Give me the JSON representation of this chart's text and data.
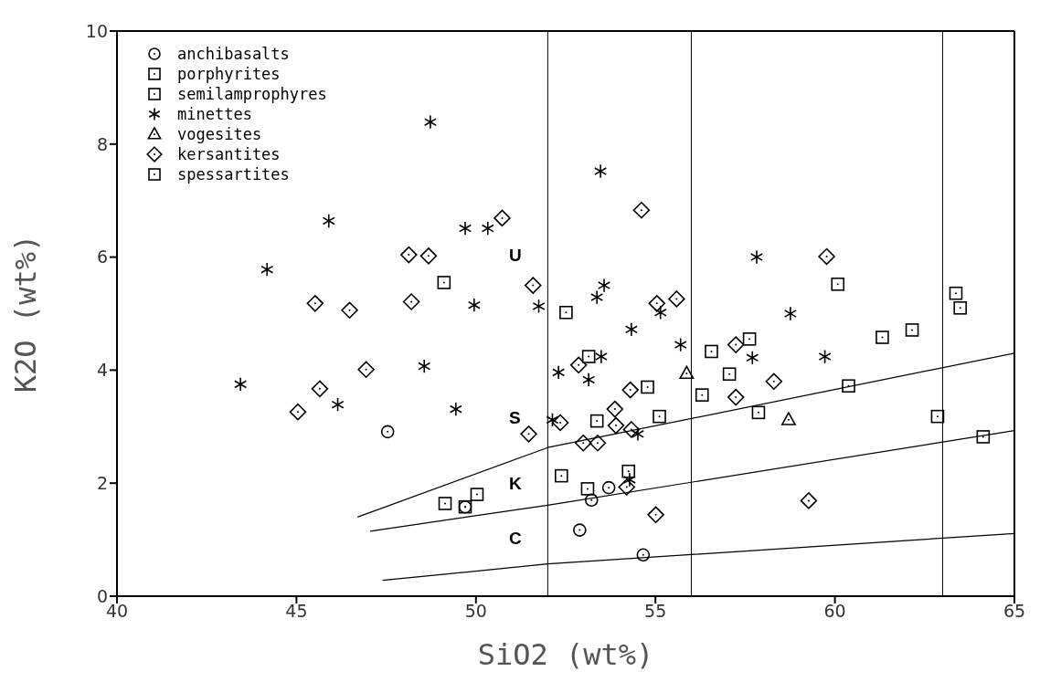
{
  "chart_data": {
    "type": "scatter",
    "xlabel": "SiO2 (wt%)",
    "ylabel": "K2O (wt%)",
    "xlim": [
      40,
      65
    ],
    "xticks": [
      40,
      45,
      50,
      55,
      60,
      65
    ],
    "ylim": [
      0,
      10
    ],
    "yticks": [
      0,
      2,
      4,
      6,
      8,
      10
    ],
    "legend": "top left",
    "series": [
      {
        "name": "anchibasalts",
        "color": "#000000",
        "marker": "circle",
        "x": [
          47.54,
          49.7,
          52.89,
          53.22,
          53.7,
          54.66
        ],
        "values": [
          2.91,
          1.58,
          1.17,
          1.7,
          1.92,
          0.73
        ]
      },
      {
        "name": "porphyrites",
        "color": "#000000",
        "marker": "square",
        "x": [
          52.51,
          54.25,
          54.78,
          56.3,
          57.62
        ],
        "values": [
          5.02,
          2.21,
          3.7,
          3.56,
          4.55
        ]
      },
      {
        "name": "semilamprophyres",
        "color": "#000000",
        "marker": "square",
        "x": [
          57.06,
          57.87,
          60.08,
          60.38,
          61.32,
          62.15,
          63.37,
          63.49,
          62.86,
          64.13
        ],
        "values": [
          3.93,
          3.25,
          5.52,
          3.72,
          4.58,
          4.71,
          5.36,
          5.1,
          3.18,
          2.82
        ]
      },
      {
        "name": "minettes",
        "color": "#000000",
        "marker": "cross",
        "x": [
          43.44,
          44.18,
          45.9,
          46.15,
          48.56,
          48.73,
          49.44,
          49.7,
          49.95,
          50.33,
          51.75,
          52.13,
          52.3,
          53.14,
          53.37,
          53.47,
          53.49,
          53.57,
          54.28,
          54.33,
          54.51,
          55.14,
          55.7,
          57.7,
          57.82,
          58.76,
          59.72
        ],
        "values": [
          3.75,
          5.78,
          6.64,
          3.39,
          4.07,
          8.39,
          3.31,
          6.51,
          5.15,
          6.51,
          5.13,
          3.12,
          3.96,
          3.83,
          5.29,
          7.52,
          4.24,
          5.5,
          2.06,
          4.72,
          2.87,
          5.02,
          4.45,
          4.22,
          6.0,
          5.0,
          4.24
        ]
      },
      {
        "name": "vogesites",
        "color": "#000000",
        "marker": "triangle",
        "x": [
          55.87,
          58.71
        ],
        "values": [
          3.94,
          3.12
        ]
      },
      {
        "name": "kersantites",
        "color": "#000000",
        "marker": "diamond",
        "x": [
          48.13,
          48.68,
          45.52,
          46.48,
          48.2,
          46.94,
          45.65,
          45.04,
          51.59,
          51.47,
          52.35,
          50.73,
          54.61,
          55.04,
          55.59,
          52.86,
          54.3,
          53.87,
          53.9,
          54.33,
          57.24,
          57.24,
          52.99,
          53.39,
          54.2,
          55.01,
          59.77,
          58.3,
          59.27
        ],
        "values": [
          6.04,
          6.02,
          5.18,
          5.06,
          5.21,
          4.01,
          3.67,
          3.26,
          5.5,
          2.87,
          3.07,
          6.69,
          6.83,
          5.18,
          5.26,
          4.09,
          3.65,
          3.31,
          3.02,
          2.95,
          4.45,
          3.52,
          2.71,
          2.71,
          1.93,
          1.44,
          6.01,
          3.8,
          1.69
        ]
      },
      {
        "name": "spessartites",
        "color": "#000000",
        "marker": "square",
        "x": [
          49.11,
          49.14,
          49.7,
          50.03,
          52.38,
          53.11,
          53.37,
          53.14,
          56.56,
          55.11
        ],
        "values": [
          5.55,
          1.64,
          1.58,
          1.8,
          2.13,
          1.9,
          3.1,
          4.24,
          4.33,
          3.18
        ]
      },
      {
        "type": "line",
        "color": "#000000",
        "marker": "none",
        "x": [
          46.7,
          52,
          65
        ],
        "values": [
          1.4,
          2.63,
          4.3
        ]
      },
      {
        "type": "line",
        "color": "#000000",
        "marker": "none",
        "x": [
          47.05,
          52,
          65
        ],
        "values": [
          1.15,
          1.61,
          2.93
        ]
      },
      {
        "type": "line",
        "color": "#000000",
        "marker": "none",
        "x": [
          47.4,
          52,
          65
        ],
        "values": [
          0.28,
          0.57,
          1.11
        ]
      }
    ],
    "ref_lines": [
      {
        "axis": "x",
        "value": 52
      },
      {
        "axis": "x",
        "value": 56
      },
      {
        "axis": "x",
        "value": 63
      }
    ],
    "annotations": [
      "U",
      "S",
      "K",
      "C"
    ]
  }
}
